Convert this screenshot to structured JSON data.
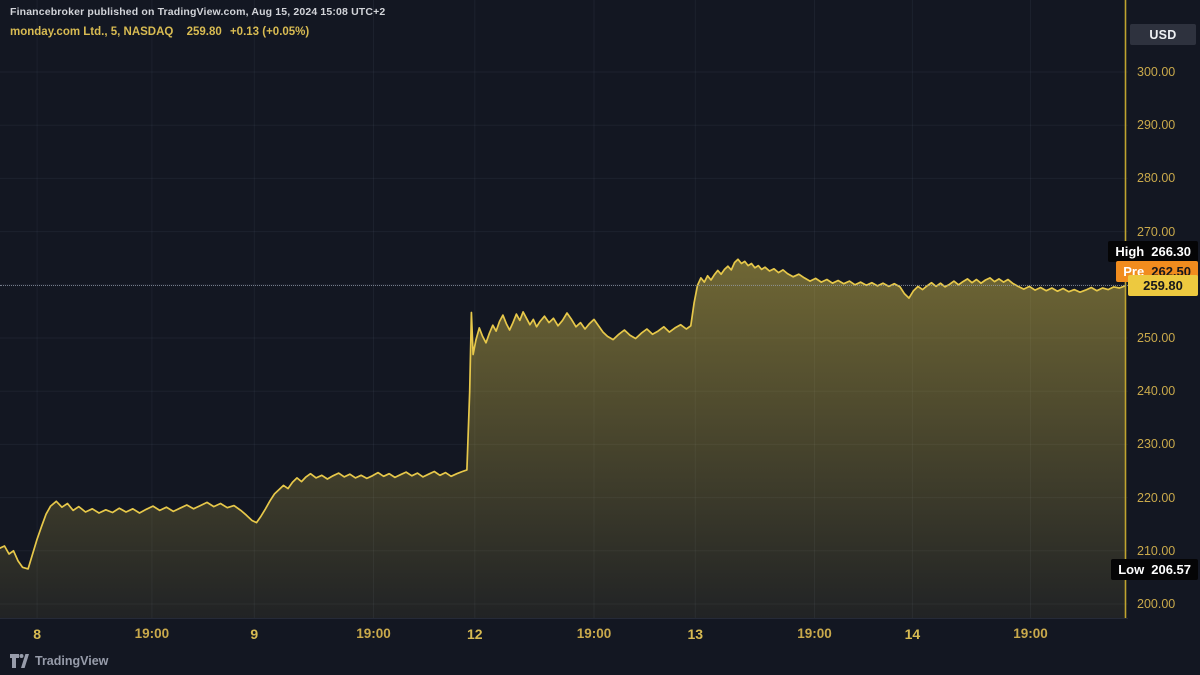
{
  "header": {
    "published_line": "Financebroker published on TradingView.com, Aug 15, 2024 15:08 UTC+2",
    "symbol_line": "monday.com Ltd., 5, NASDAQ",
    "last_price": "259.80",
    "change": "+0.13 (+0.05%)"
  },
  "axis": {
    "currency_label": "USD",
    "y_ticks": [
      "300.00",
      "290.00",
      "280.00",
      "270.00",
      "260.00",
      "250.00",
      "240.00",
      "230.00",
      "220.00",
      "210.00",
      "200.00"
    ]
  },
  "badges": {
    "high": {
      "label": "High",
      "value": "266.30",
      "price": 266.3
    },
    "pre": {
      "label": "Pre",
      "value": "262.50",
      "price": 262.5
    },
    "last": {
      "label": "",
      "value": "259.80",
      "price": 259.8
    },
    "low": {
      "label": "Low",
      "value": "206.57",
      "price": 206.57
    }
  },
  "footer": {
    "brand": "TradingView"
  },
  "colors": {
    "bg": "#131722",
    "line": "#e7c84a",
    "fill": "#d9c24a",
    "gold": "#c9a94b",
    "gold_bright": "#d8bb52",
    "grid": "rgba(160,170,195,0.07)",
    "timeline": "#c0a42f",
    "pre_badge": "#f18c1e",
    "last_badge": "#edc93f"
  },
  "chart_data": {
    "type": "area",
    "title": "monday.com Ltd., 5, NASDAQ",
    "ylabel": "USD",
    "ylim": [
      200,
      300
    ],
    "y_tick_step": 10,
    "grid": true,
    "legend_position": "none",
    "last_price": 259.8,
    "high": 266.3,
    "pre_market": 262.5,
    "low": 206.57,
    "x_ticks": [
      {
        "label": "8",
        "f": 0.033,
        "kind": "day"
      },
      {
        "label": "19:00",
        "f": 0.135,
        "kind": "hour"
      },
      {
        "label": "9",
        "f": 0.226,
        "kind": "day"
      },
      {
        "label": "19:00",
        "f": 0.332,
        "kind": "hour"
      },
      {
        "label": "12",
        "f": 0.422,
        "kind": "day"
      },
      {
        "label": "19:00",
        "f": 0.528,
        "kind": "hour"
      },
      {
        "label": "13",
        "f": 0.618,
        "kind": "day"
      },
      {
        "label": "19:00",
        "f": 0.724,
        "kind": "hour"
      },
      {
        "label": "14",
        "f": 0.811,
        "kind": "day"
      },
      {
        "label": "19:00",
        "f": 0.916,
        "kind": "hour"
      }
    ],
    "series": [
      {
        "name": "monday.com Ltd. (MNDY) price, USD",
        "points": [
          [
            0.0,
            210.5
          ],
          [
            0.004,
            210.9
          ],
          [
            0.008,
            209.4
          ],
          [
            0.012,
            210.0
          ],
          [
            0.016,
            208.1
          ],
          [
            0.02,
            206.9
          ],
          [
            0.025,
            206.6
          ],
          [
            0.029,
            209.4
          ],
          [
            0.033,
            212.2
          ],
          [
            0.037,
            214.6
          ],
          [
            0.041,
            216.9
          ],
          [
            0.045,
            218.4
          ],
          [
            0.05,
            219.3
          ],
          [
            0.055,
            218.2
          ],
          [
            0.06,
            218.9
          ],
          [
            0.065,
            217.6
          ],
          [
            0.07,
            218.3
          ],
          [
            0.076,
            217.3
          ],
          [
            0.082,
            217.9
          ],
          [
            0.088,
            217.1
          ],
          [
            0.094,
            217.7
          ],
          [
            0.1,
            217.2
          ],
          [
            0.106,
            218.0
          ],
          [
            0.112,
            217.3
          ],
          [
            0.118,
            217.9
          ],
          [
            0.124,
            217.1
          ],
          [
            0.13,
            217.8
          ],
          [
            0.136,
            218.4
          ],
          [
            0.142,
            217.6
          ],
          [
            0.148,
            218.2
          ],
          [
            0.154,
            217.4
          ],
          [
            0.16,
            218.0
          ],
          [
            0.166,
            218.6
          ],
          [
            0.172,
            217.9
          ],
          [
            0.178,
            218.5
          ],
          [
            0.184,
            219.1
          ],
          [
            0.19,
            218.3
          ],
          [
            0.196,
            218.9
          ],
          [
            0.202,
            218.1
          ],
          [
            0.208,
            218.5
          ],
          [
            0.214,
            217.6
          ],
          [
            0.219,
            216.7
          ],
          [
            0.224,
            215.7
          ],
          [
            0.228,
            215.3
          ],
          [
            0.232,
            216.5
          ],
          [
            0.236,
            217.9
          ],
          [
            0.24,
            219.4
          ],
          [
            0.244,
            220.7
          ],
          [
            0.248,
            221.5
          ],
          [
            0.252,
            222.3
          ],
          [
            0.256,
            221.7
          ],
          [
            0.26,
            222.9
          ],
          [
            0.264,
            223.7
          ],
          [
            0.268,
            223.0
          ],
          [
            0.272,
            223.9
          ],
          [
            0.276,
            224.5
          ],
          [
            0.281,
            223.7
          ],
          [
            0.286,
            224.2
          ],
          [
            0.291,
            223.5
          ],
          [
            0.296,
            224.1
          ],
          [
            0.301,
            224.6
          ],
          [
            0.306,
            223.9
          ],
          [
            0.311,
            224.4
          ],
          [
            0.316,
            223.7
          ],
          [
            0.321,
            224.2
          ],
          [
            0.326,
            223.6
          ],
          [
            0.331,
            224.1
          ],
          [
            0.336,
            224.7
          ],
          [
            0.341,
            224.0
          ],
          [
            0.346,
            224.5
          ],
          [
            0.351,
            223.8
          ],
          [
            0.356,
            224.3
          ],
          [
            0.361,
            224.8
          ],
          [
            0.366,
            224.1
          ],
          [
            0.371,
            224.6
          ],
          [
            0.376,
            223.9
          ],
          [
            0.381,
            224.4
          ],
          [
            0.386,
            224.9
          ],
          [
            0.391,
            224.2
          ],
          [
            0.396,
            224.7
          ],
          [
            0.401,
            224.0
          ],
          [
            0.406,
            224.5
          ],
          [
            0.411,
            224.9
          ],
          [
            0.415,
            225.2
          ],
          [
            0.4175,
            240.0
          ],
          [
            0.419,
            254.8
          ],
          [
            0.4205,
            246.9
          ],
          [
            0.423,
            249.6
          ],
          [
            0.426,
            251.9
          ],
          [
            0.429,
            250.3
          ],
          [
            0.432,
            249.1
          ],
          [
            0.435,
            250.9
          ],
          [
            0.438,
            252.4
          ],
          [
            0.441,
            251.3
          ],
          [
            0.444,
            253.1
          ],
          [
            0.447,
            254.3
          ],
          [
            0.45,
            252.7
          ],
          [
            0.453,
            251.5
          ],
          [
            0.456,
            252.9
          ],
          [
            0.459,
            254.5
          ],
          [
            0.462,
            253.3
          ],
          [
            0.465,
            254.9
          ],
          [
            0.468,
            253.7
          ],
          [
            0.471,
            252.5
          ],
          [
            0.474,
            253.5
          ],
          [
            0.477,
            252.1
          ],
          [
            0.48,
            253.1
          ],
          [
            0.484,
            254.1
          ],
          [
            0.488,
            252.9
          ],
          [
            0.492,
            253.7
          ],
          [
            0.496,
            252.3
          ],
          [
            0.5,
            253.3
          ],
          [
            0.504,
            254.7
          ],
          [
            0.508,
            253.5
          ],
          [
            0.512,
            252.1
          ],
          [
            0.516,
            252.9
          ],
          [
            0.52,
            251.7
          ],
          [
            0.524,
            252.7
          ],
          [
            0.528,
            253.5
          ],
          [
            0.532,
            252.3
          ],
          [
            0.536,
            251.1
          ],
          [
            0.54,
            250.3
          ],
          [
            0.545,
            249.7
          ],
          [
            0.55,
            250.7
          ],
          [
            0.555,
            251.5
          ],
          [
            0.56,
            250.5
          ],
          [
            0.565,
            249.9
          ],
          [
            0.57,
            250.9
          ],
          [
            0.575,
            251.7
          ],
          [
            0.58,
            250.7
          ],
          [
            0.585,
            251.3
          ],
          [
            0.59,
            252.1
          ],
          [
            0.595,
            251.1
          ],
          [
            0.6,
            251.9
          ],
          [
            0.605,
            252.5
          ],
          [
            0.61,
            251.7
          ],
          [
            0.614,
            252.3
          ],
          [
            0.617,
            256.6
          ],
          [
            0.62,
            259.9
          ],
          [
            0.623,
            261.3
          ],
          [
            0.626,
            260.5
          ],
          [
            0.629,
            261.7
          ],
          [
            0.632,
            260.9
          ],
          [
            0.635,
            261.9
          ],
          [
            0.638,
            262.7
          ],
          [
            0.641,
            262.0
          ],
          [
            0.644,
            262.9
          ],
          [
            0.647,
            263.5
          ],
          [
            0.65,
            262.8
          ],
          [
            0.653,
            264.2
          ],
          [
            0.656,
            264.8
          ],
          [
            0.659,
            264.0
          ],
          [
            0.662,
            264.4
          ],
          [
            0.665,
            263.6
          ],
          [
            0.668,
            264.0
          ],
          [
            0.671,
            263.2
          ],
          [
            0.674,
            263.6
          ],
          [
            0.677,
            262.9
          ],
          [
            0.68,
            263.3
          ],
          [
            0.684,
            262.6
          ],
          [
            0.688,
            263.0
          ],
          [
            0.692,
            262.3
          ],
          [
            0.696,
            262.8
          ],
          [
            0.7,
            262.1
          ],
          [
            0.705,
            261.5
          ],
          [
            0.71,
            262.0
          ],
          [
            0.715,
            261.3
          ],
          [
            0.72,
            260.7
          ],
          [
            0.725,
            261.2
          ],
          [
            0.73,
            260.5
          ],
          [
            0.735,
            261.0
          ],
          [
            0.74,
            260.3
          ],
          [
            0.745,
            260.8
          ],
          [
            0.75,
            260.2
          ],
          [
            0.755,
            260.7
          ],
          [
            0.76,
            260.0
          ],
          [
            0.765,
            260.5
          ],
          [
            0.77,
            259.9
          ],
          [
            0.775,
            260.4
          ],
          [
            0.78,
            259.8
          ],
          [
            0.785,
            260.3
          ],
          [
            0.79,
            259.7
          ],
          [
            0.795,
            260.2
          ],
          [
            0.8,
            259.6
          ],
          [
            0.804,
            258.3
          ],
          [
            0.808,
            257.5
          ],
          [
            0.812,
            258.9
          ],
          [
            0.816,
            259.7
          ],
          [
            0.82,
            259.1
          ],
          [
            0.824,
            259.8
          ],
          [
            0.828,
            260.4
          ],
          [
            0.832,
            259.7
          ],
          [
            0.836,
            260.3
          ],
          [
            0.84,
            259.6
          ],
          [
            0.844,
            260.1
          ],
          [
            0.848,
            260.7
          ],
          [
            0.852,
            260.0
          ],
          [
            0.856,
            260.6
          ],
          [
            0.86,
            261.1
          ],
          [
            0.864,
            260.4
          ],
          [
            0.868,
            261.0
          ],
          [
            0.872,
            260.3
          ],
          [
            0.876,
            260.9
          ],
          [
            0.88,
            261.3
          ],
          [
            0.884,
            260.6
          ],
          [
            0.888,
            261.1
          ],
          [
            0.892,
            260.5
          ],
          [
            0.896,
            261.0
          ],
          [
            0.9,
            260.3
          ],
          [
            0.905,
            259.7
          ],
          [
            0.91,
            259.2
          ],
          [
            0.915,
            259.7
          ],
          [
            0.92,
            259.0
          ],
          [
            0.925,
            259.5
          ],
          [
            0.93,
            258.9
          ],
          [
            0.935,
            259.4
          ],
          [
            0.94,
            258.8
          ],
          [
            0.945,
            259.3
          ],
          [
            0.95,
            258.7
          ],
          [
            0.955,
            259.1
          ],
          [
            0.96,
            258.6
          ],
          [
            0.965,
            259.0
          ],
          [
            0.97,
            259.5
          ],
          [
            0.975,
            258.9
          ],
          [
            0.98,
            259.4
          ],
          [
            0.985,
            259.1
          ],
          [
            0.99,
            259.6
          ],
          [
            0.995,
            259.4
          ],
          [
            1.0,
            259.8
          ]
        ]
      }
    ]
  }
}
